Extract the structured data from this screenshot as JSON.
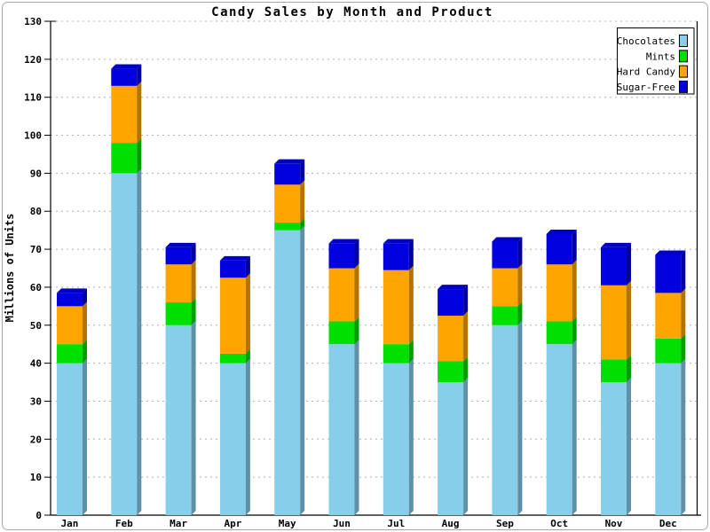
{
  "window": {
    "background": "#ffffff",
    "border_color": "#a8a8a8"
  },
  "chart_data": {
    "type": "bar",
    "stacked": true,
    "style": "3d",
    "title": "Candy Sales by Month and Product",
    "xlabel": "",
    "ylabel": "Millions of Units",
    "ylim": [
      0,
      130
    ],
    "ytick_step": 10,
    "ytick_labels": [
      "0",
      "10",
      "20",
      "30",
      "40",
      "50",
      "60",
      "70",
      "80",
      "90",
      "100",
      "110",
      "120",
      "130"
    ],
    "grid": "horizontal-dashed",
    "gridline_color": "#b3b3b3",
    "axis_color": "#000000",
    "legend_position": "top-right",
    "categories": [
      "Jan",
      "Feb",
      "Mar",
      "Apr",
      "May",
      "Jun",
      "Jul",
      "Aug",
      "Sep",
      "Oct",
      "Nov",
      "Dec"
    ],
    "series": [
      {
        "name": "Chocolates",
        "color": "#87CEEB",
        "values": [
          40,
          90,
          50,
          40,
          75,
          45,
          40,
          35,
          50,
          45,
          35,
          40
        ]
      },
      {
        "name": "Mints",
        "color": "#00E000",
        "values": [
          5,
          8,
          6,
          2.5,
          2,
          6,
          5,
          5.5,
          5,
          6,
          6,
          6.5
        ]
      },
      {
        "name": "Hard Candy",
        "color": "#FFA500",
        "values": [
          10,
          15,
          10,
          20,
          10,
          14,
          19.5,
          12,
          10,
          15,
          19.5,
          12
        ]
      },
      {
        "name": "Sugar-Free",
        "color": "#0000E0",
        "values": [
          3.5,
          4.5,
          4.5,
          4.5,
          5.5,
          6.5,
          7,
          7,
          7,
          8,
          10,
          10
        ]
      }
    ],
    "totals": [
      58.5,
      117.5,
      70.5,
      67,
      92.5,
      71.5,
      71.5,
      59.5,
      72,
      74,
      70.5,
      68.5
    ]
  }
}
